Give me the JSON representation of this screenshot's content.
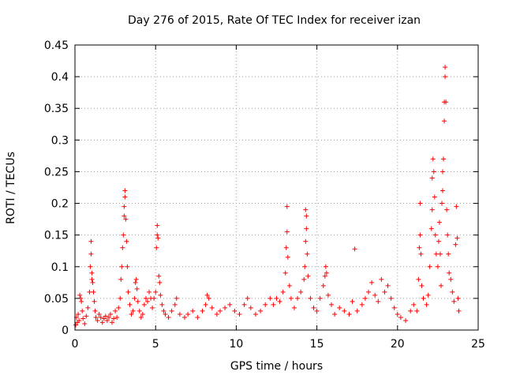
{
  "chart_data": {
    "type": "scatter",
    "title": "Day 276 of 2015, Rate Of TEC Index for receiver izan",
    "xlabel": "GPS time / hours",
    "ylabel": "ROTI / TECUs",
    "xlim": [
      0,
      25
    ],
    "ylim": [
      0,
      0.45
    ],
    "xticks": [
      0,
      5,
      10,
      15,
      20,
      25
    ],
    "xtick_labels": [
      "0",
      "5",
      "10",
      "15",
      "20",
      "25"
    ],
    "yticks": [
      0,
      0.05,
      0.1,
      0.15,
      0.2,
      0.25,
      0.3,
      0.35,
      0.4,
      0.45
    ],
    "ytick_labels": [
      "0",
      "0.05",
      "0.1",
      "0.15",
      "0.2",
      "0.25",
      "0.3",
      "0.35",
      "0.4",
      "0.45"
    ],
    "grid": true,
    "marker": "+",
    "series": [
      {
        "name": "ROTI",
        "color": "#ff0000",
        "points": [
          [
            0.05,
            0.008
          ],
          [
            0.1,
            0.02
          ],
          [
            0.15,
            0.012
          ],
          [
            0.2,
            0.025
          ],
          [
            0.25,
            0.015
          ],
          [
            0.3,
            0.055
          ],
          [
            0.35,
            0.05
          ],
          [
            0.4,
            0.045
          ],
          [
            0.45,
            0.03
          ],
          [
            0.5,
            0.018
          ],
          [
            0.6,
            0.01
          ],
          [
            0.7,
            0.022
          ],
          [
            0.8,
            0.035
          ],
          [
            0.9,
            0.06
          ],
          [
            0.95,
            0.1
          ],
          [
            1.0,
            0.14
          ],
          [
            1.0,
            0.12
          ],
          [
            1.05,
            0.09
          ],
          [
            1.05,
            0.08
          ],
          [
            1.1,
            0.075
          ],
          [
            1.15,
            0.06
          ],
          [
            1.2,
            0.045
          ],
          [
            1.25,
            0.03
          ],
          [
            1.3,
            0.02
          ],
          [
            1.4,
            0.015
          ],
          [
            1.5,
            0.025
          ],
          [
            1.6,
            0.02
          ],
          [
            1.7,
            0.012
          ],
          [
            1.8,
            0.018
          ],
          [
            1.9,
            0.022
          ],
          [
            2.0,
            0.015
          ],
          [
            2.1,
            0.02
          ],
          [
            2.2,
            0.025
          ],
          [
            2.3,
            0.012
          ],
          [
            2.4,
            0.018
          ],
          [
            2.5,
            0.03
          ],
          [
            2.6,
            0.02
          ],
          [
            2.7,
            0.035
          ],
          [
            2.8,
            0.05
          ],
          [
            2.85,
            0.08
          ],
          [
            2.9,
            0.1
          ],
          [
            2.95,
            0.13
          ],
          [
            3.0,
            0.15
          ],
          [
            3.05,
            0.18
          ],
          [
            3.05,
            0.195
          ],
          [
            3.1,
            0.22
          ],
          [
            3.1,
            0.21
          ],
          [
            3.15,
            0.175
          ],
          [
            3.2,
            0.14
          ],
          [
            3.25,
            0.1
          ],
          [
            3.3,
            0.06
          ],
          [
            3.4,
            0.04
          ],
          [
            3.5,
            0.025
          ],
          [
            3.6,
            0.03
          ],
          [
            3.7,
            0.05
          ],
          [
            3.75,
            0.075
          ],
          [
            3.8,
            0.08
          ],
          [
            3.85,
            0.065
          ],
          [
            3.9,
            0.045
          ],
          [
            4.0,
            0.03
          ],
          [
            4.1,
            0.02
          ],
          [
            4.2,
            0.025
          ],
          [
            4.3,
            0.04
          ],
          [
            4.4,
            0.05
          ],
          [
            4.5,
            0.045
          ],
          [
            4.6,
            0.06
          ],
          [
            4.7,
            0.05
          ],
          [
            4.8,
            0.035
          ],
          [
            4.9,
            0.05
          ],
          [
            5.0,
            0.06
          ],
          [
            5.05,
            0.13
          ],
          [
            5.1,
            0.15
          ],
          [
            5.1,
            0.165
          ],
          [
            5.15,
            0.145
          ],
          [
            5.2,
            0.085
          ],
          [
            5.25,
            0.075
          ],
          [
            5.3,
            0.055
          ],
          [
            5.4,
            0.04
          ],
          [
            5.5,
            0.03
          ],
          [
            5.6,
            0.025
          ],
          [
            5.8,
            0.02
          ],
          [
            6.0,
            0.03
          ],
          [
            6.2,
            0.04
          ],
          [
            6.3,
            0.05
          ],
          [
            6.5,
            0.025
          ],
          [
            6.8,
            0.02
          ],
          [
            7.0,
            0.025
          ],
          [
            7.3,
            0.03
          ],
          [
            7.6,
            0.02
          ],
          [
            7.9,
            0.03
          ],
          [
            8.1,
            0.04
          ],
          [
            8.2,
            0.055
          ],
          [
            8.3,
            0.05
          ],
          [
            8.5,
            0.035
          ],
          [
            8.8,
            0.025
          ],
          [
            9.0,
            0.03
          ],
          [
            9.3,
            0.035
          ],
          [
            9.6,
            0.04
          ],
          [
            9.9,
            0.03
          ],
          [
            10.2,
            0.025
          ],
          [
            10.5,
            0.04
          ],
          [
            10.7,
            0.05
          ],
          [
            10.9,
            0.035
          ],
          [
            11.2,
            0.025
          ],
          [
            11.5,
            0.03
          ],
          [
            11.8,
            0.04
          ],
          [
            12.1,
            0.05
          ],
          [
            12.3,
            0.04
          ],
          [
            12.5,
            0.05
          ],
          [
            12.7,
            0.045
          ],
          [
            12.9,
            0.06
          ],
          [
            13.05,
            0.09
          ],
          [
            13.1,
            0.13
          ],
          [
            13.15,
            0.155
          ],
          [
            13.15,
            0.195
          ],
          [
            13.2,
            0.115
          ],
          [
            13.3,
            0.07
          ],
          [
            13.4,
            0.05
          ],
          [
            13.6,
            0.035
          ],
          [
            13.8,
            0.05
          ],
          [
            14.0,
            0.06
          ],
          [
            14.2,
            0.08
          ],
          [
            14.25,
            0.1
          ],
          [
            14.3,
            0.14
          ],
          [
            14.3,
            0.19
          ],
          [
            14.35,
            0.18
          ],
          [
            14.35,
            0.16
          ],
          [
            14.4,
            0.12
          ],
          [
            14.45,
            0.085
          ],
          [
            14.6,
            0.05
          ],
          [
            14.8,
            0.035
          ],
          [
            15.0,
            0.03
          ],
          [
            15.2,
            0.05
          ],
          [
            15.4,
            0.07
          ],
          [
            15.5,
            0.085
          ],
          [
            15.55,
            0.1
          ],
          [
            15.6,
            0.09
          ],
          [
            15.7,
            0.055
          ],
          [
            15.9,
            0.04
          ],
          [
            16.1,
            0.025
          ],
          [
            16.4,
            0.035
          ],
          [
            16.7,
            0.03
          ],
          [
            17.0,
            0.025
          ],
          [
            17.2,
            0.045
          ],
          [
            17.35,
            0.128
          ],
          [
            17.5,
            0.03
          ],
          [
            17.8,
            0.04
          ],
          [
            18.0,
            0.05
          ],
          [
            18.2,
            0.06
          ],
          [
            18.4,
            0.075
          ],
          [
            18.6,
            0.055
          ],
          [
            18.8,
            0.045
          ],
          [
            19.0,
            0.08
          ],
          [
            19.2,
            0.06
          ],
          [
            19.4,
            0.07
          ],
          [
            19.6,
            0.05
          ],
          [
            19.8,
            0.035
          ],
          [
            20.0,
            0.025
          ],
          [
            20.2,
            0.02
          ],
          [
            20.5,
            0.015
          ],
          [
            20.8,
            0.03
          ],
          [
            21.0,
            0.04
          ],
          [
            21.2,
            0.03
          ],
          [
            21.3,
            0.08
          ],
          [
            21.35,
            0.13
          ],
          [
            21.4,
            0.15
          ],
          [
            21.4,
            0.2
          ],
          [
            21.45,
            0.12
          ],
          [
            21.5,
            0.07
          ],
          [
            21.6,
            0.05
          ],
          [
            21.8,
            0.04
          ],
          [
            21.9,
            0.055
          ],
          [
            22.0,
            0.1
          ],
          [
            22.1,
            0.16
          ],
          [
            22.15,
            0.19
          ],
          [
            22.15,
            0.24
          ],
          [
            22.2,
            0.27
          ],
          [
            22.25,
            0.25
          ],
          [
            22.3,
            0.21
          ],
          [
            22.35,
            0.15
          ],
          [
            22.4,
            0.12
          ],
          [
            22.5,
            0.1
          ],
          [
            22.55,
            0.14
          ],
          [
            22.6,
            0.17
          ],
          [
            22.65,
            0.12
          ],
          [
            22.7,
            0.07
          ],
          [
            22.75,
            0.2
          ],
          [
            22.8,
            0.22
          ],
          [
            22.8,
            0.25
          ],
          [
            22.85,
            0.27
          ],
          [
            22.9,
            0.33
          ],
          [
            22.9,
            0.36
          ],
          [
            22.95,
            0.4
          ],
          [
            22.95,
            0.415
          ],
          [
            23.0,
            0.36
          ],
          [
            23.05,
            0.19
          ],
          [
            23.1,
            0.15
          ],
          [
            23.15,
            0.12
          ],
          [
            23.2,
            0.09
          ],
          [
            23.3,
            0.08
          ],
          [
            23.4,
            0.06
          ],
          [
            23.5,
            0.045
          ],
          [
            23.6,
            0.135
          ],
          [
            23.65,
            0.195
          ],
          [
            23.7,
            0.145
          ],
          [
            23.75,
            0.05
          ],
          [
            23.8,
            0.03
          ]
        ]
      }
    ]
  }
}
